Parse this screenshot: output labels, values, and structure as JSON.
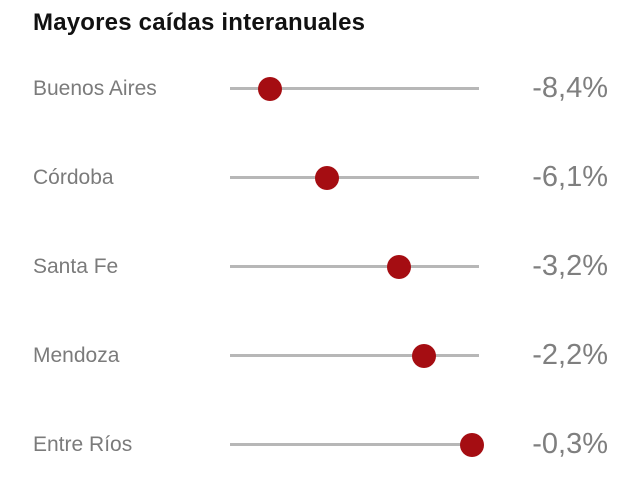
{
  "chart": {
    "title": "Mayores caídas interanuales"
  },
  "chart_data": {
    "type": "scatter",
    "subtype": "dot-plot",
    "title": "Mayores caídas interanuales",
    "categories": [
      "Buenos Aires",
      "Córdoba",
      "Santa Fe",
      "Mendoza",
      "Entre Ríos"
    ],
    "values": [
      -8.4,
      -6.1,
      -3.2,
      -2.2,
      -0.3
    ],
    "value_labels": [
      "-8,4%",
      "-6,1%",
      "-3,2%",
      "-2,2%",
      "-0,3%"
    ],
    "xlabel": "",
    "ylabel": "",
    "xlim": [
      -10,
      0
    ],
    "grid": false,
    "legend": false,
    "colors": {
      "dot": "#a50d12",
      "track_line": "#b7b7b7",
      "label_text": "#7b7b7b",
      "value_text": "#7f7f7f",
      "title_text": "#111111",
      "background": "#ffffff"
    }
  }
}
